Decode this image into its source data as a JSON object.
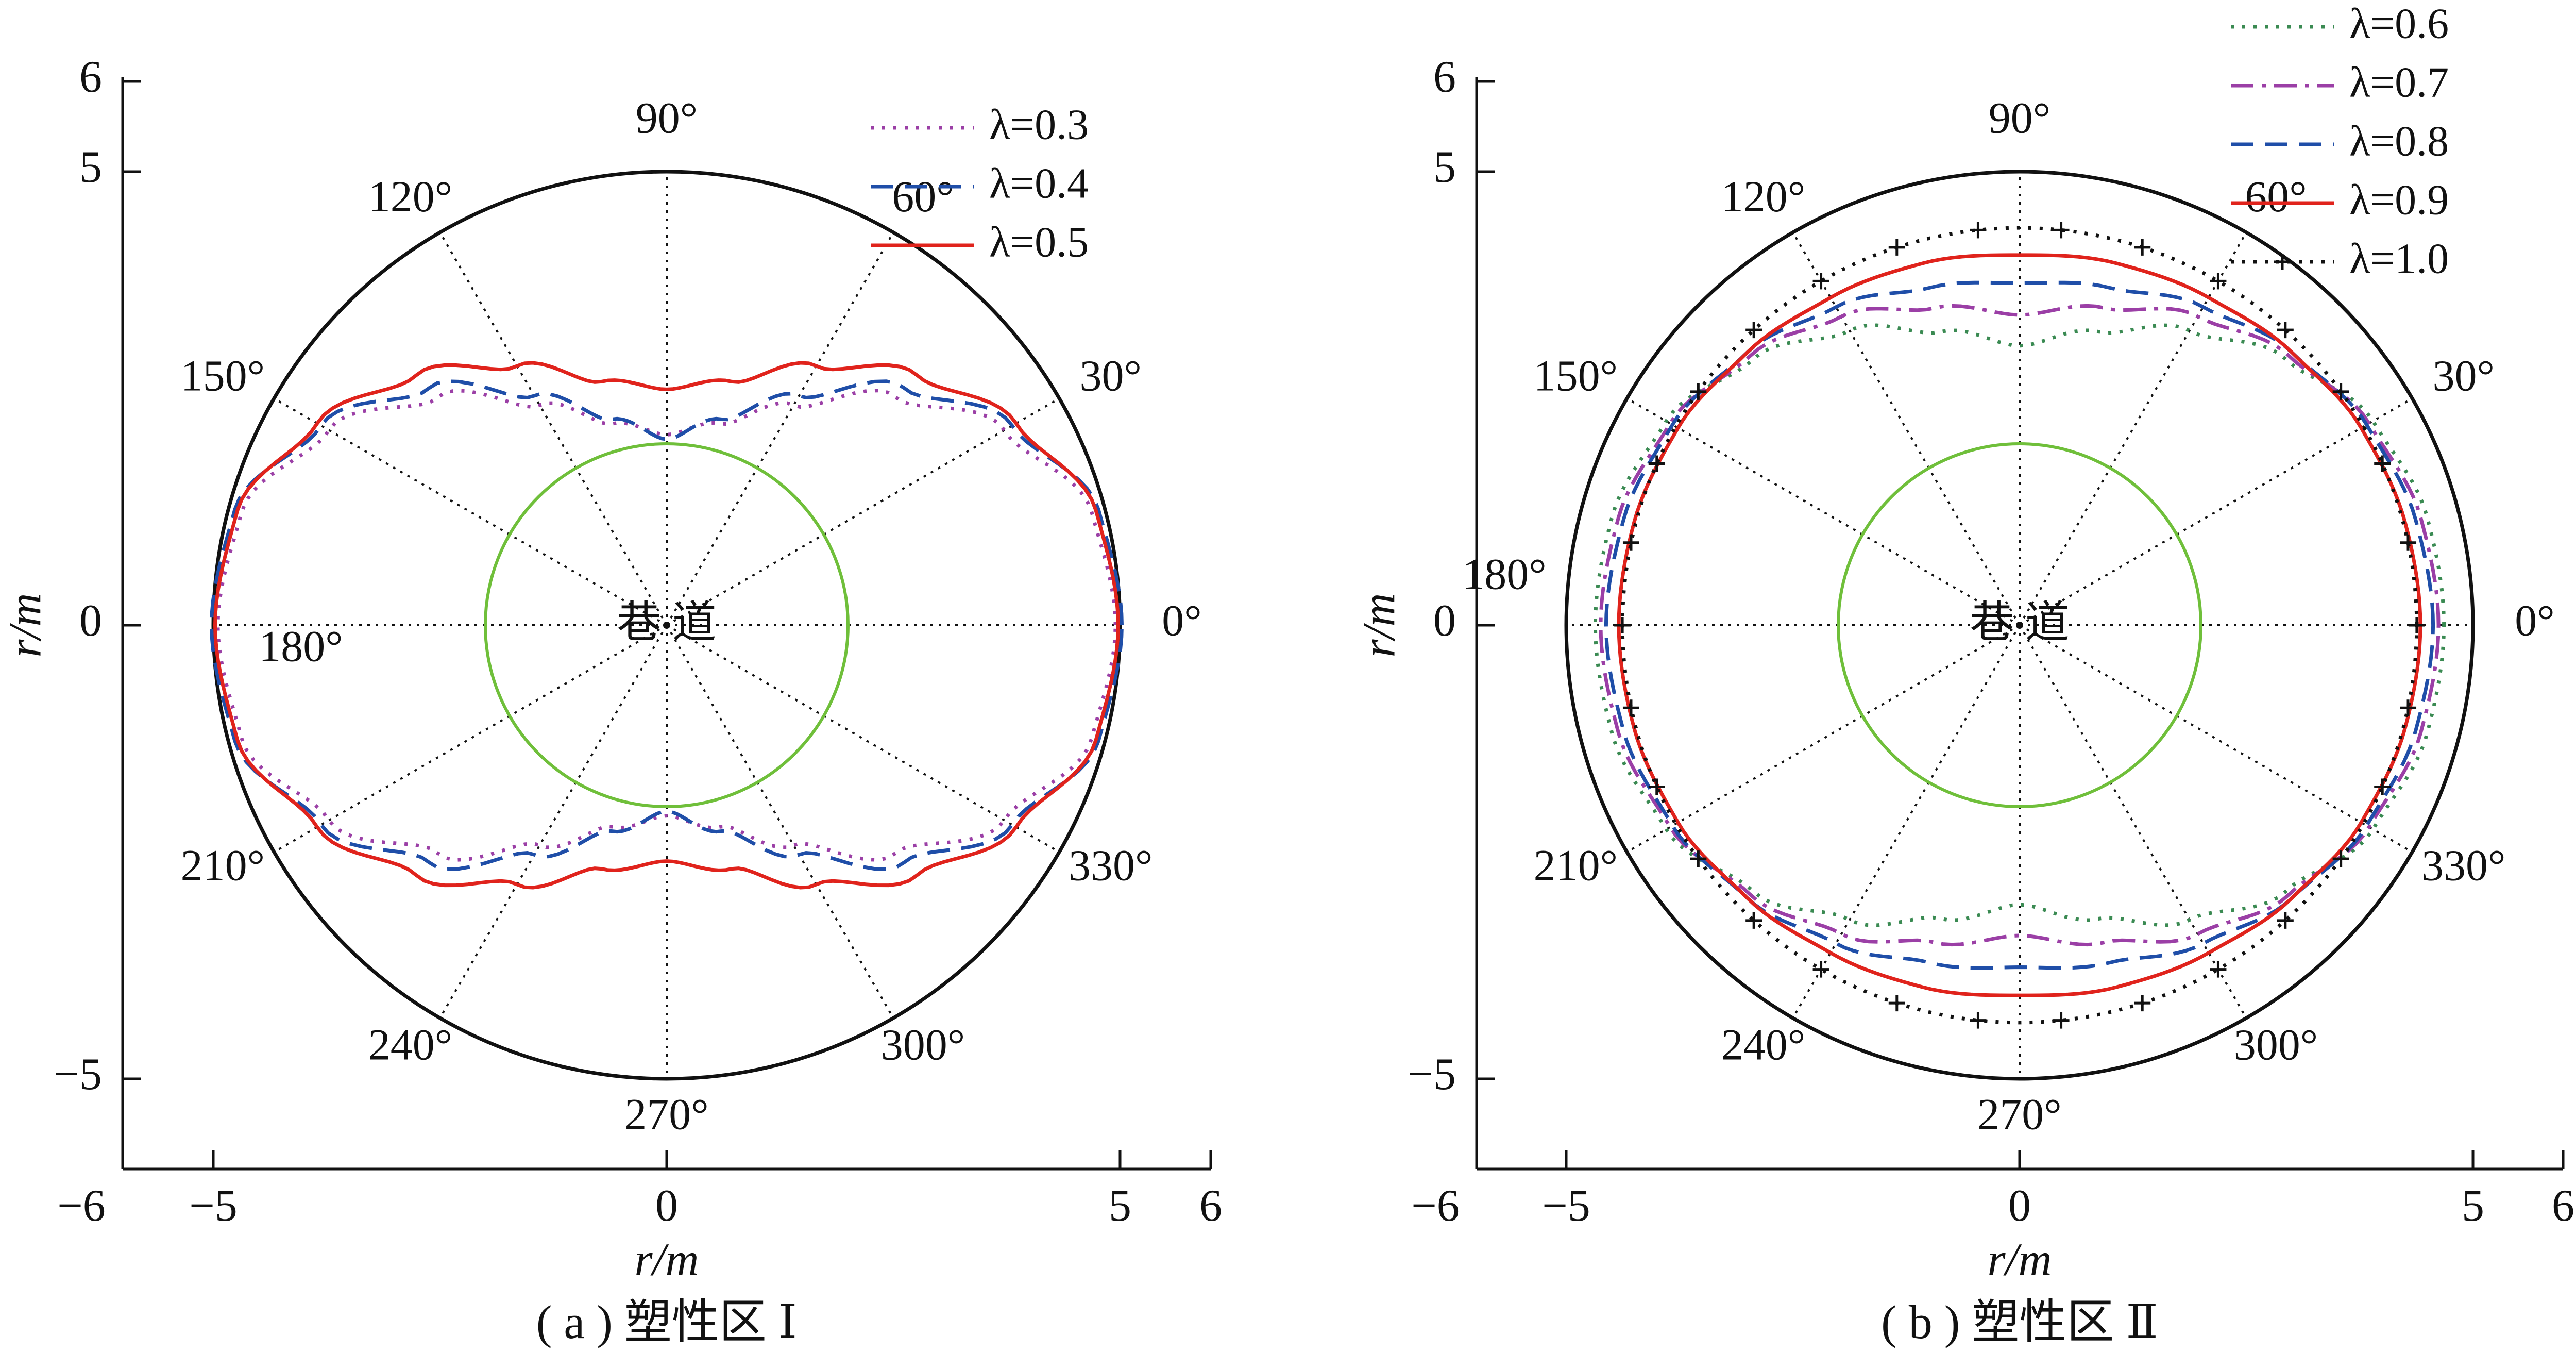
{
  "chart_data": [
    {
      "type": "polar-line",
      "caption": "( a ) 塑性区 Ⅰ",
      "xlabel": "r/m",
      "ylabel": "r/m",
      "xlim": [
        -6,
        6
      ],
      "ylim": [
        -6,
        6
      ],
      "x_ticks": [
        "−6",
        "−5",
        "0",
        "5",
        "6"
      ],
      "y_ticks": [
        "6",
        "5",
        "0",
        "−5"
      ],
      "outer_circle_radius": 5,
      "tunnel_radius": 2,
      "tunnel_label": "巷 道",
      "angle_labels": [
        "0°",
        "30°",
        "60°",
        "90°",
        "120°",
        "150°",
        "180°",
        "210°",
        "240°",
        "270°",
        "300°",
        "330°"
      ],
      "series": [
        {
          "name": "λ=0.3",
          "color": "#9b3fa6",
          "style": "dotted",
          "r": [
            4.95,
            4.85,
            4.3,
            3.56,
            2.8,
            2.3,
            2.1,
            2.3,
            2.8,
            3.56,
            4.3,
            4.85,
            4.95
          ]
        },
        {
          "name": "λ=0.4",
          "color": "#1f4ea8",
          "style": "dashed",
          "r": [
            5.02,
            4.93,
            4.4,
            3.7,
            2.92,
            2.35,
            2.05,
            2.35,
            2.92,
            3.7,
            4.4,
            4.93,
            5.02
          ]
        },
        {
          "name": "λ=0.5",
          "color": "#e0231c",
          "style": "solid",
          "r": [
            4.98,
            4.9,
            4.45,
            3.9,
            3.3,
            2.78,
            2.6,
            2.78,
            3.3,
            3.9,
            4.45,
            4.9,
            4.98
          ]
        }
      ],
      "angles_deg": [
        0,
        15,
        30,
        45,
        60,
        75,
        90,
        105,
        120,
        135,
        150,
        165,
        180
      ]
    },
    {
      "type": "polar-line",
      "caption": "( b ) 塑性区 Ⅱ",
      "xlabel": "r/m",
      "ylabel": "r/m",
      "xlim": [
        -6,
        6
      ],
      "ylim": [
        -6,
        6
      ],
      "x_ticks": [
        "−6",
        "−5",
        "0",
        "5",
        "6"
      ],
      "y_ticks": [
        "6",
        "5",
        "0",
        "−5"
      ],
      "outer_circle_radius": 5,
      "tunnel_radius": 2,
      "tunnel_label": "巷 道",
      "angle_labels": [
        "0°",
        "30°",
        "60°",
        "90°",
        "120°",
        "150°",
        "180°",
        "210°",
        "240°",
        "270°",
        "300°",
        "330°"
      ],
      "series": [
        {
          "name": "λ=0.6",
          "color": "#3a8a52",
          "style": "dotted",
          "r": [
            4.68,
            4.65,
            4.5,
            4.15,
            3.75,
            3.35,
            3.08,
            3.35,
            3.75,
            4.15,
            4.5,
            4.65,
            4.68
          ]
        },
        {
          "name": "λ=0.7",
          "color": "#9b3fa6",
          "style": "dashdot",
          "r": [
            4.62,
            4.58,
            4.45,
            4.2,
            3.93,
            3.62,
            3.42,
            3.62,
            3.93,
            4.2,
            4.45,
            4.58,
            4.62
          ]
        },
        {
          "name": "λ=0.8",
          "color": "#1f4ea8",
          "style": "dashed",
          "r": [
            4.56,
            4.52,
            4.42,
            4.25,
            4.05,
            3.85,
            3.77,
            3.85,
            4.05,
            4.25,
            4.42,
            4.52,
            4.56
          ]
        },
        {
          "name": "λ=0.9",
          "color": "#e0231c",
          "style": "solid",
          "r": [
            4.42,
            4.4,
            4.35,
            4.25,
            4.17,
            4.13,
            4.08,
            4.13,
            4.17,
            4.25,
            4.35,
            4.4,
            4.42
          ]
        },
        {
          "name": "λ=1.0",
          "color": "#111111",
          "style": "dotted-plus",
          "r": [
            4.38,
            4.38,
            4.38,
            4.38,
            4.38,
            4.38,
            4.38,
            4.38,
            4.38,
            4.38,
            4.38,
            4.38,
            4.38
          ]
        }
      ],
      "angles_deg": [
        0,
        15,
        30,
        45,
        60,
        75,
        90,
        105,
        120,
        135,
        150,
        165,
        180
      ]
    }
  ]
}
